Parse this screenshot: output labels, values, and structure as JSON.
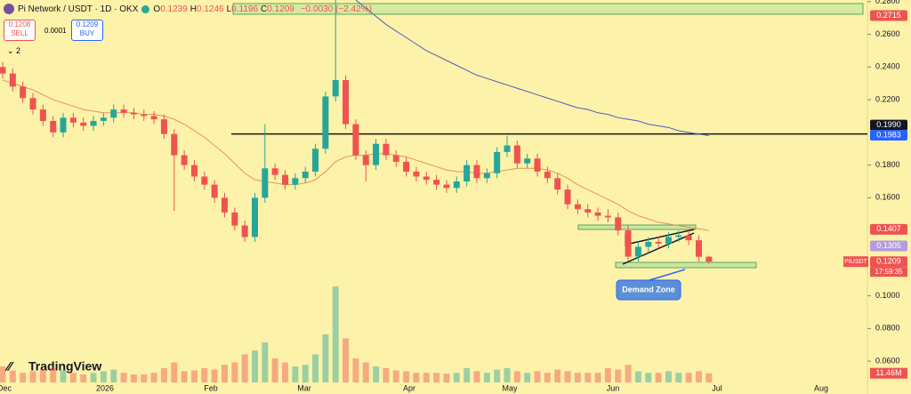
{
  "chart_data": {
    "type": "candlestick",
    "title": "Pi Network / USDT · 1D · OKX",
    "legend_ohlc": [
      {
        "key": "O",
        "text": "0.1239"
      },
      {
        "key": "H",
        "text": "0.1246"
      },
      {
        "key": "L",
        "text": "0.1196"
      },
      {
        "key": "C",
        "text": "0.1209"
      }
    ],
    "change": "−0.0030 (−2.42%)",
    "sell": {
      "price": "0.1208",
      "label": "SELL"
    },
    "spread": "0.0001",
    "buy": {
      "price": "0.1209",
      "label": "BUY"
    },
    "indicator_count": "2",
    "brand": "TradingView",
    "up_color": "#26a69a",
    "down_color": "#ef5350",
    "ylim": [
      0.047,
      0.281
    ],
    "yticks": [
      {
        "value": 0.28,
        "label": "0.2800"
      },
      {
        "value": 0.26,
        "label": "0.2600"
      },
      {
        "value": 0.24,
        "label": "0.2400"
      },
      {
        "value": 0.22,
        "label": "0.2200"
      },
      {
        "value": 0.18,
        "label": "0.1800"
      },
      {
        "value": 0.16,
        "label": "0.1600"
      },
      {
        "value": 0.1,
        "label": "0.1000"
      },
      {
        "value": 0.08,
        "label": "0.0800"
      },
      {
        "value": 0.06,
        "label": "0.0600"
      }
    ],
    "xtick_labels": [
      "Dec",
      "2026",
      "Feb",
      "Mar",
      "Apr",
      "May",
      "Jun",
      "Jul",
      "Aug"
    ],
    "open": [
      0.24,
      0.236,
      0.228,
      0.221,
      0.214,
      0.207,
      0.2,
      0.209,
      0.206,
      0.204,
      0.207,
      0.209,
      0.214,
      0.212,
      0.211,
      0.21,
      0.208,
      0.199,
      0.186,
      0.18,
      0.173,
      0.168,
      0.16,
      0.151,
      0.143,
      0.136,
      0.16,
      0.178,
      0.174,
      0.168,
      0.172,
      0.176,
      0.19,
      0.222,
      0.232,
      0.205,
      0.186,
      0.18,
      0.193,
      0.186,
      0.182,
      0.176,
      0.173,
      0.171,
      0.168,
      0.166,
      0.17,
      0.18,
      0.172,
      0.175,
      0.188,
      0.192,
      0.181,
      0.184,
      0.176,
      0.172,
      0.165,
      0.156,
      0.153,
      0.151,
      0.149,
      0.148,
      0.14,
      0.124,
      0.13,
      0.133,
      0.132,
      0.136,
      0.137,
      0.134,
      0.1239
    ],
    "high": [
      0.243,
      0.239,
      0.231,
      0.224,
      0.217,
      0.21,
      0.212,
      0.212,
      0.209,
      0.21,
      0.212,
      0.217,
      0.217,
      0.215,
      0.214,
      0.213,
      0.211,
      0.202,
      0.189,
      0.183,
      0.176,
      0.171,
      0.163,
      0.154,
      0.146,
      0.163,
      0.205,
      0.181,
      0.177,
      0.175,
      0.179,
      0.193,
      0.225,
      0.285,
      0.235,
      0.208,
      0.189,
      0.196,
      0.196,
      0.189,
      0.185,
      0.179,
      0.176,
      0.174,
      0.171,
      0.173,
      0.183,
      0.183,
      0.178,
      0.191,
      0.198,
      0.195,
      0.187,
      0.187,
      0.179,
      0.175,
      0.168,
      0.159,
      0.156,
      0.154,
      0.153,
      0.151,
      0.143,
      0.133,
      0.136,
      0.136,
      0.139,
      0.14,
      0.14,
      0.137,
      0.1246
    ],
    "low": [
      0.233,
      0.225,
      0.218,
      0.211,
      0.204,
      0.197,
      0.197,
      0.203,
      0.201,
      0.201,
      0.204,
      0.206,
      0.209,
      0.208,
      0.207,
      0.205,
      0.196,
      0.152,
      0.177,
      0.17,
      0.165,
      0.157,
      0.148,
      0.14,
      0.133,
      0.133,
      0.157,
      0.171,
      0.165,
      0.165,
      0.169,
      0.173,
      0.187,
      0.219,
      0.202,
      0.183,
      0.17,
      0.177,
      0.183,
      0.179,
      0.173,
      0.17,
      0.168,
      0.165,
      0.163,
      0.163,
      0.167,
      0.169,
      0.169,
      0.172,
      0.185,
      0.178,
      0.178,
      0.173,
      0.169,
      0.162,
      0.153,
      0.15,
      0.148,
      0.146,
      0.145,
      0.137,
      0.121,
      0.121,
      0.127,
      0.129,
      0.129,
      0.133,
      0.131,
      0.121,
      0.1196
    ],
    "close": [
      0.236,
      0.228,
      0.221,
      0.214,
      0.207,
      0.2,
      0.209,
      0.206,
      0.204,
      0.207,
      0.209,
      0.214,
      0.212,
      0.211,
      0.21,
      0.208,
      0.199,
      0.186,
      0.18,
      0.173,
      0.168,
      0.16,
      0.151,
      0.143,
      0.136,
      0.16,
      0.178,
      0.174,
      0.168,
      0.172,
      0.176,
      0.19,
      0.222,
      0.232,
      0.205,
      0.186,
      0.18,
      0.193,
      0.186,
      0.182,
      0.176,
      0.173,
      0.171,
      0.168,
      0.166,
      0.17,
      0.18,
      0.172,
      0.175,
      0.188,
      0.192,
      0.181,
      0.184,
      0.176,
      0.172,
      0.165,
      0.156,
      0.153,
      0.151,
      0.149,
      0.148,
      0.14,
      0.124,
      0.13,
      0.133,
      0.132,
      0.136,
      0.137,
      0.134,
      0.1239,
      0.1209
    ],
    "volume": {
      "values": [
        20,
        15,
        12,
        14,
        16,
        18,
        15,
        12,
        10,
        12,
        14,
        16,
        12,
        10,
        10,
        12,
        18,
        25,
        14,
        15,
        18,
        16,
        22,
        25,
        35,
        40,
        50,
        30,
        25,
        20,
        22,
        35,
        60,
        120,
        55,
        30,
        25,
        20,
        18,
        15,
        14,
        12,
        12,
        12,
        11,
        12,
        18,
        14,
        12,
        16,
        18,
        14,
        12,
        14,
        12,
        16,
        14,
        12,
        12,
        12,
        18,
        16,
        22,
        14,
        12,
        12,
        14,
        12,
        12,
        14,
        11.46
      ],
      "last_label": "11.46M"
    },
    "lines": [
      {
        "color": "#e8925a",
        "values": [
          0.232,
          0.23,
          0.228,
          0.226,
          0.223,
          0.22,
          0.218,
          0.216,
          0.214,
          0.213,
          0.212,
          0.212,
          0.212,
          0.212,
          0.211,
          0.211,
          0.21,
          0.208,
          0.205,
          0.201,
          0.197,
          0.192,
          0.187,
          0.181,
          0.175,
          0.171,
          0.17,
          0.169,
          0.168,
          0.168,
          0.169,
          0.171,
          0.176,
          0.182,
          0.185,
          0.186,
          0.186,
          0.187,
          0.187,
          0.186,
          0.185,
          0.183,
          0.181,
          0.179,
          0.177,
          0.176,
          0.176,
          0.175,
          0.175,
          0.176,
          0.177,
          0.178,
          0.178,
          0.178,
          0.177,
          0.175,
          0.172,
          0.168,
          0.165,
          0.162,
          0.159,
          0.156,
          0.152,
          0.149,
          0.147,
          0.145,
          0.144,
          0.143,
          0.142,
          0.141,
          0.14
        ]
      },
      {
        "color": "#4a5fc1",
        "values": [
          null,
          null,
          null,
          null,
          null,
          null,
          null,
          null,
          null,
          null,
          null,
          null,
          null,
          null,
          null,
          null,
          null,
          null,
          null,
          null,
          null,
          null,
          null,
          null,
          null,
          null,
          null,
          null,
          null,
          null,
          null,
          null,
          null,
          null,
          null,
          0.281,
          0.276,
          0.271,
          0.266,
          0.262,
          0.258,
          0.254,
          0.25,
          0.247,
          0.244,
          0.241,
          0.238,
          0.235,
          0.233,
          0.231,
          0.229,
          0.227,
          0.225,
          0.223,
          0.221,
          0.219,
          0.217,
          0.215,
          0.214,
          0.212,
          0.211,
          0.209,
          0.208,
          0.207,
          0.205,
          0.204,
          0.203,
          0.201,
          0.2,
          0.199,
          0.198
        ]
      }
    ],
    "horizontal_line": {
      "value": 0.199,
      "label": "0.1990"
    },
    "price_labels": [
      {
        "value": 0.2715,
        "label": "0.2715",
        "color": "#ef5350"
      },
      {
        "value": 0.199,
        "label": "0.1990",
        "color": "#131722"
      },
      {
        "value": 0.1983,
        "label": "0.1983",
        "color": "#2962ff"
      },
      {
        "value": 0.1407,
        "label": "0.1407",
        "color": "#ef5350"
      },
      {
        "value": 0.1305,
        "label": "0.1305",
        "color": "#b39ddb"
      },
      {
        "value": 0.1209,
        "label": "0.1209",
        "color": "#ef5350"
      }
    ],
    "symbol_tag": "PIUSDT",
    "countdown": "17:59:35",
    "annotation": "Demand Zone"
  }
}
